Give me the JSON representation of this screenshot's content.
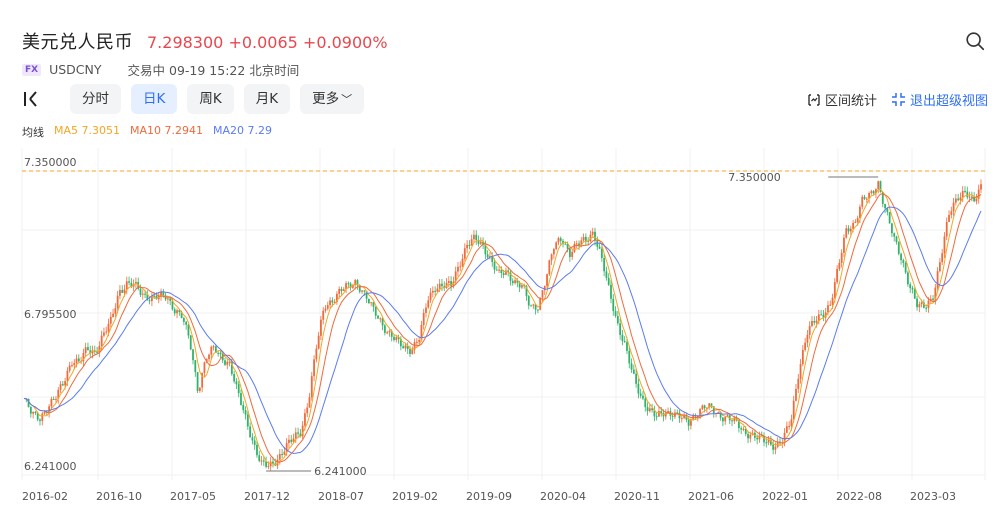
{
  "header": {
    "title": "美元兑人民币",
    "price": "7.298300",
    "change": "+0.0065",
    "change_pct": "+0.0900%",
    "badge": "FX",
    "symbol": "USDCNY",
    "status": "交易中 09-19 15:22 北京时间"
  },
  "icons": {
    "search": "search-icon",
    "kline": "kline-chart-icon",
    "range_stat": "range-stat-icon",
    "exit_fullscreen": "exit-fullscreen-icon"
  },
  "toolbar": {
    "tabs": [
      {
        "label": "分时",
        "active": false
      },
      {
        "label": "日K",
        "active": true
      },
      {
        "label": "周K",
        "active": false
      },
      {
        "label": "月K",
        "active": false
      },
      {
        "label": "更多",
        "active": false
      }
    ],
    "range_stat_label": "区间统计",
    "exit_label": "退出超级视图"
  },
  "ma": {
    "label": "均线",
    "ma5": "MA5 7.3051",
    "ma10": "MA10 7.2941",
    "ma20": "MA20 7.29"
  },
  "colors": {
    "up": "#f06a3c",
    "down": "#2fb36a",
    "ma5": "#f5a623",
    "ma10": "#f06a3c",
    "ma20": "#5b7cf0",
    "price_up": "#e8474e",
    "accent": "#2f6ff2"
  },
  "chart_data": {
    "type": "line",
    "y_ticks": [
      "7.350000",
      "6.795500",
      "6.241000"
    ],
    "ylim": [
      6.241,
      7.35
    ],
    "x_ticks": [
      "2016-02",
      "2016-10",
      "2017-05",
      "2017-12",
      "2018-07",
      "2019-02",
      "2019-09",
      "2020-04",
      "2020-11",
      "2021-06",
      "2022-01",
      "2022-08",
      "2023-03"
    ],
    "max_label": "7.350000",
    "min_label": "6.241000",
    "current_line_value": 7.298,
    "series": [
      {
        "values": [
          6.52,
          6.46,
          6.45,
          6.49,
          6.52,
          6.58,
          6.66,
          6.65,
          6.7,
          6.69,
          6.75,
          6.8,
          6.91,
          6.94,
          6.93,
          6.9,
          6.89,
          6.89,
          6.89,
          6.85,
          6.82,
          6.72,
          6.55,
          6.67,
          6.7,
          6.67,
          6.65,
          6.54,
          6.45,
          6.36,
          6.28,
          6.27,
          6.3,
          6.34,
          6.37,
          6.4,
          6.52,
          6.71,
          6.86,
          6.88,
          6.91,
          6.93,
          6.95,
          6.9,
          6.85,
          6.81,
          6.76,
          6.73,
          6.71,
          6.7,
          6.74,
          6.88,
          6.93,
          6.93,
          6.93,
          7.01,
          7.08,
          7.1,
          7.08,
          7.03,
          6.97,
          6.98,
          6.95,
          6.93,
          6.85,
          6.86,
          6.96,
          7.07,
          7.11,
          7.05,
          7.08,
          7.1,
          7.13,
          7.03,
          6.91,
          6.8,
          6.71,
          6.6,
          6.53,
          6.48,
          6.45,
          6.47,
          6.47,
          6.45,
          6.43,
          6.47,
          6.49,
          6.48,
          6.46,
          6.45,
          6.43,
          6.4,
          6.39,
          6.37,
          6.36,
          6.35,
          6.37,
          6.44,
          6.63,
          6.76,
          6.8,
          6.83,
          6.87,
          7.0,
          7.14,
          7.16,
          7.24,
          7.26,
          7.31,
          7.2,
          7.1,
          7.03,
          6.93,
          6.85,
          6.86,
          6.9,
          7.04,
          7.2,
          7.26,
          7.27,
          7.23,
          7.3
        ]
      }
    ]
  }
}
